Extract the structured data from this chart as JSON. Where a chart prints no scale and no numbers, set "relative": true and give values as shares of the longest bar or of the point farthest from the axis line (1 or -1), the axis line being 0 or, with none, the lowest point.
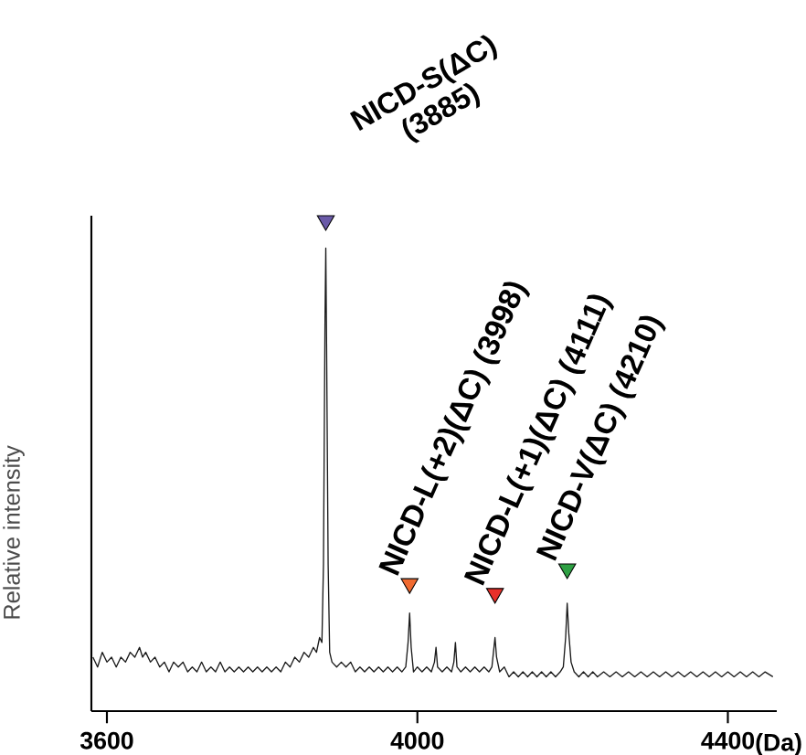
{
  "chart_data": {
    "type": "line",
    "relative": true,
    "xlabel": "(Da)",
    "ylabel": "Relative intensity",
    "xlim": [
      3580,
      4463
    ],
    "xticks": [
      3600,
      4000,
      4400
    ],
    "series": [
      {
        "type": "line",
        "color": "#1a1a1a",
        "x": [
          3582,
          3588,
          3594,
          3600,
          3606,
          3612,
          3618,
          3624,
          3630,
          3636,
          3642,
          3646,
          3650,
          3656,
          3662,
          3668,
          3674,
          3680,
          3686,
          3692,
          3698,
          3704,
          3710,
          3716,
          3722,
          3728,
          3734,
          3740,
          3746,
          3752,
          3758,
          3764,
          3770,
          3776,
          3782,
          3788,
          3794,
          3800,
          3806,
          3812,
          3818,
          3824,
          3830,
          3836,
          3842,
          3848,
          3854,
          3860,
          3866,
          3870,
          3874,
          3877,
          3879,
          3881,
          3882,
          3883,
          3885,
          3887,
          3890,
          3896,
          3902,
          3908,
          3914,
          3920,
          3926,
          3932,
          3938,
          3944,
          3950,
          3956,
          3962,
          3968,
          3974,
          3980,
          3985,
          3988,
          3990,
          3992,
          3995,
          4000,
          4006,
          4012,
          4018,
          4022,
          4024,
          4026,
          4032,
          4038,
          4044,
          4047,
          4049,
          4051,
          4056,
          4062,
          4068,
          4074,
          4080,
          4086,
          4092,
          4096,
          4098,
          4100,
          4102,
          4106,
          4112,
          4118,
          4124,
          4130,
          4136,
          4142,
          4148,
          4154,
          4160,
          4166,
          4172,
          4178,
          4184,
          4188,
          4191,
          4193,
          4195,
          4198,
          4202,
          4208,
          4214,
          4220,
          4226,
          4232,
          4240,
          4248,
          4256,
          4264,
          4272,
          4280,
          4288,
          4296,
          4304,
          4312,
          4320,
          4328,
          4336,
          4344,
          4352,
          4360,
          4368,
          4376,
          4384,
          4392,
          4400,
          4408,
          4416,
          4424,
          4432,
          4440,
          4448,
          4458
        ],
        "values": [
          0.11,
          0.09,
          0.12,
          0.1,
          0.11,
          0.09,
          0.11,
          0.1,
          0.12,
          0.11,
          0.13,
          0.11,
          0.12,
          0.1,
          0.11,
          0.09,
          0.1,
          0.08,
          0.1,
          0.09,
          0.1,
          0.08,
          0.09,
          0.08,
          0.1,
          0.08,
          0.09,
          0.08,
          0.1,
          0.08,
          0.09,
          0.08,
          0.09,
          0.08,
          0.09,
          0.08,
          0.09,
          0.08,
          0.09,
          0.08,
          0.09,
          0.08,
          0.1,
          0.09,
          0.11,
          0.1,
          0.12,
          0.11,
          0.13,
          0.12,
          0.15,
          0.14,
          0.3,
          0.8,
          0.944,
          0.75,
          0.3,
          0.12,
          0.1,
          0.09,
          0.1,
          0.09,
          0.1,
          0.08,
          0.09,
          0.08,
          0.09,
          0.08,
          0.09,
          0.08,
          0.09,
          0.08,
          0.09,
          0.08,
          0.09,
          0.14,
          0.2,
          0.13,
          0.08,
          0.09,
          0.08,
          0.09,
          0.08,
          0.1,
          0.13,
          0.09,
          0.08,
          0.09,
          0.08,
          0.1,
          0.14,
          0.09,
          0.08,
          0.09,
          0.08,
          0.09,
          0.08,
          0.09,
          0.08,
          0.09,
          0.12,
          0.15,
          0.11,
          0.08,
          0.09,
          0.07,
          0.08,
          0.07,
          0.08,
          0.07,
          0.08,
          0.07,
          0.08,
          0.07,
          0.08,
          0.07,
          0.08,
          0.09,
          0.15,
          0.22,
          0.16,
          0.1,
          0.08,
          0.07,
          0.08,
          0.07,
          0.08,
          0.07,
          0.08,
          0.07,
          0.08,
          0.07,
          0.08,
          0.07,
          0.08,
          0.07,
          0.08,
          0.07,
          0.08,
          0.07,
          0.08,
          0.07,
          0.08,
          0.07,
          0.08,
          0.07,
          0.08,
          0.07,
          0.08,
          0.07,
          0.08,
          0.07,
          0.08,
          0.07,
          0.08,
          0.07
        ]
      },
      {
        "type": "scatter",
        "marker": "triangle",
        "x": [
          3882,
          3990,
          4100,
          4193
        ],
        "values": [
          1,
          0.26,
          0.24,
          0.29
        ],
        "colors": [
          "#6a5aa8",
          "#f06a30",
          "#e8302a",
          "#2ea043"
        ]
      }
    ],
    "annotations": [
      {
        "text": "NICD-S(ΔC) (3885)",
        "x": 3882,
        "y": 1
      },
      {
        "text": "NICD-L(+2)(ΔC) (3998)",
        "x": 3990,
        "y": 0.26
      },
      {
        "text": "NICD-L(+1)(ΔC) (4111)",
        "x": 4100,
        "y": 0.24
      },
      {
        "text": "NICD-V(ΔC) (4210)",
        "x": 4193,
        "y": 0.29
      }
    ]
  }
}
